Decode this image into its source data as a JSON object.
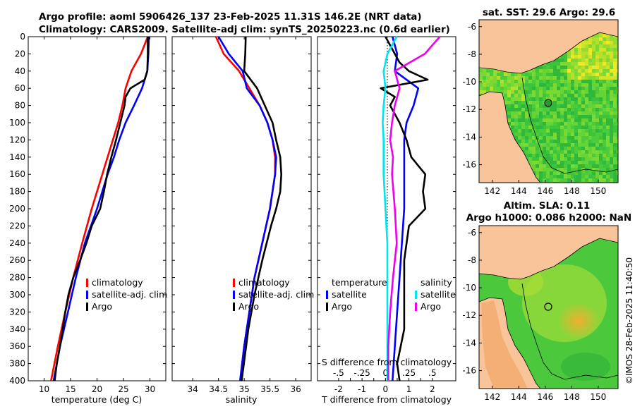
{
  "header": {
    "title_line1": "Argo profile: aoml 5906426_137 23-Feb-2025 11.31S 146.2E (NRT data)",
    "title_line2": "Climatology: CARS2009. Satellite-adj clim: synTS_20250223.nc (0.6d earlier)"
  },
  "side_text": "©IMOS 28-Feb-2025 11:40:50",
  "colors": {
    "climatology": "#ff0000",
    "satellite": "#0000ff",
    "argo": "#000000",
    "s_satellite": "#00e5ee",
    "s_argo": "#ee00ee",
    "sea_green": "#3cc43c",
    "land": "#f9c49a",
    "lowland": "#f0a868"
  },
  "chart_data": [
    {
      "type": "line",
      "name": "temperature-profile",
      "xlabel": "temperature (deg C)",
      "ylabel": "depth",
      "xlim": [
        7,
        33
      ],
      "ylim": [
        400,
        0
      ],
      "xticks": [
        10,
        15,
        20,
        25,
        30
      ],
      "yticks": [
        0,
        20,
        40,
        60,
        80,
        100,
        120,
        140,
        160,
        180,
        200,
        220,
        240,
        260,
        280,
        300,
        320,
        340,
        360,
        380,
        400
      ],
      "legend": [
        "climatology",
        "satellite-adj. clim",
        "Argo"
      ],
      "series": [
        {
          "name": "climatology",
          "color": "#ff0000",
          "depth": [
            0,
            20,
            40,
            60,
            80,
            100,
            120,
            140,
            160,
            200,
            240,
            280,
            320,
            360,
            400
          ],
          "values": [
            29.6,
            28.3,
            26.5,
            25.4,
            24.8,
            24.0,
            23.0,
            22.0,
            21.0,
            19.0,
            17.2,
            15.5,
            14.0,
            12.6,
            11.3
          ]
        },
        {
          "name": "satellite-adj. clim",
          "color": "#0000ff",
          "depth": [
            0,
            20,
            40,
            60,
            80,
            100,
            120,
            140,
            160,
            200,
            240,
            280,
            320,
            360,
            400
          ],
          "values": [
            29.8,
            29.7,
            29.5,
            28.5,
            27.0,
            25.4,
            24.2,
            23.2,
            22.0,
            20.0,
            17.7,
            16.0,
            14.5,
            13.0,
            11.8
          ]
        },
        {
          "name": "Argo",
          "color": "#000000",
          "depth": [
            0,
            20,
            40,
            50,
            60,
            70,
            80,
            100,
            120,
            140,
            160,
            180,
            200,
            220,
            240,
            260,
            280,
            300,
            320,
            340,
            360,
            380,
            400
          ],
          "values": [
            29.6,
            29.6,
            29.5,
            29.0,
            26.3,
            25.4,
            25.2,
            24.4,
            23.6,
            22.7,
            21.9,
            21.3,
            20.6,
            19.0,
            18.0,
            16.8,
            15.5,
            14.6,
            14.0,
            13.5,
            13.0,
            12.4,
            12.0
          ]
        }
      ]
    },
    {
      "type": "line",
      "name": "salinity-profile",
      "xlabel": "salinity",
      "ylabel": "depth",
      "xlim": [
        33.6,
        36.3
      ],
      "ylim": [
        400,
        0
      ],
      "xticks": [
        34,
        34.5,
        35,
        35.5,
        36
      ],
      "legend": [
        "climatology",
        "satellite-adj. clim",
        "Argo"
      ],
      "series": [
        {
          "name": "climatology",
          "color": "#ff0000",
          "depth": [
            0,
            20,
            40,
            60,
            80,
            100,
            120,
            140,
            160,
            200,
            240,
            280,
            320,
            360,
            400
          ],
          "values": [
            34.45,
            34.6,
            34.9,
            35.1,
            35.3,
            35.45,
            35.55,
            35.6,
            35.6,
            35.5,
            35.35,
            35.2,
            35.1,
            35.0,
            34.92
          ]
        },
        {
          "name": "satellite-adj. clim",
          "color": "#0000ff",
          "depth": [
            0,
            20,
            40,
            60,
            80,
            100,
            120,
            140,
            160,
            200,
            240,
            280,
            320,
            360,
            400
          ],
          "values": [
            34.5,
            34.7,
            34.97,
            35.05,
            35.3,
            35.45,
            35.55,
            35.62,
            35.6,
            35.5,
            35.35,
            35.2,
            35.1,
            35.0,
            34.92
          ]
        },
        {
          "name": "Argo",
          "color": "#000000",
          "depth": [
            0,
            20,
            40,
            60,
            80,
            100,
            120,
            140,
            160,
            180,
            200,
            220,
            260,
            300,
            340,
            400
          ],
          "values": [
            35.03,
            35.02,
            35.0,
            35.25,
            35.4,
            35.55,
            35.62,
            35.7,
            35.72,
            35.7,
            35.62,
            35.52,
            35.35,
            35.2,
            35.08,
            34.95
          ]
        }
      ]
    },
    {
      "type": "line",
      "name": "difference-profile",
      "xlabel": "T difference from climatology",
      "x2label": "S difference from climatology",
      "xlim": [
        -2.9,
        3.0
      ],
      "x2lim": [
        -0.725,
        0.75
      ],
      "ylim": [
        400,
        0
      ],
      "xticks": [
        -2,
        -1.5,
        -1,
        -0.5,
        0,
        0.5,
        1,
        1.5,
        2
      ],
      "x2ticks": [
        -0.5,
        -0.25,
        0,
        0.25,
        0.5
      ],
      "legend_temperature": {
        "title": "temperature",
        "items": [
          "satellite",
          "Argo"
        ]
      },
      "legend_salinity": {
        "title": "salinity",
        "items": [
          "satellite",
          "Argo"
        ]
      },
      "series": [
        {
          "name": "T satellite",
          "color": "#0000ff",
          "depth": [
            0,
            20,
            40,
            60,
            80,
            100,
            120,
            140,
            160,
            200,
            240,
            280,
            320,
            360,
            400
          ],
          "values": [
            0.3,
            0.5,
            0.4,
            1.4,
            1.2,
            0.9,
            0.8,
            0.8,
            0.8,
            0.8,
            0.7,
            0.6,
            0.5,
            0.4,
            0.3
          ]
        },
        {
          "name": "T Argo",
          "color": "#000000",
          "depth": [
            0,
            30,
            40,
            50,
            60,
            70,
            80,
            100,
            120,
            140,
            160,
            180,
            200,
            220,
            260,
            300,
            340,
            380,
            400
          ],
          "values": [
            0.0,
            0.6,
            1.0,
            1.8,
            -0.2,
            0.4,
            0.2,
            0.6,
            0.9,
            1.1,
            1.7,
            1.6,
            1.7,
            1.0,
            0.8,
            0.8,
            0.8,
            0.5,
            0.6
          ]
        },
        {
          "name": "S satellite",
          "color": "#00e5ee",
          "depth": [
            0,
            20,
            40,
            60,
            80,
            100,
            120,
            140,
            160,
            200,
            240,
            280,
            320,
            360,
            400
          ],
          "values": [
            0.12,
            0.02,
            -0.02,
            0.0,
            -0.02,
            -0.03,
            -0.02,
            -0.02,
            -0.02,
            0.0,
            0.02,
            0.02,
            0.02,
            0.02,
            0.02
          ]
        },
        {
          "name": "S Argo",
          "color": "#ee00ee",
          "depth": [
            0,
            20,
            40,
            60,
            80,
            100,
            120,
            140,
            160,
            200,
            240,
            280,
            320,
            360,
            400
          ],
          "values": [
            0.58,
            0.42,
            0.1,
            0.15,
            0.1,
            0.07,
            0.05,
            0.08,
            0.07,
            0.1,
            0.12,
            0.08,
            0.05,
            0.03,
            0.03
          ]
        }
      ]
    },
    {
      "type": "map",
      "name": "sst-map",
      "title": "sat. SST: 29.6 Argo: 29.6",
      "xticks": [
        142,
        144,
        146,
        148,
        150
      ],
      "yticks": [
        -6,
        -8,
        -10,
        -12,
        -14,
        -16
      ],
      "lon_range": [
        141,
        151.5
      ],
      "lat_range": [
        -17.3,
        -5.5
      ],
      "marker": {
        "lon": 146.2,
        "lat": -11.31
      }
    },
    {
      "type": "map",
      "name": "sla-map",
      "title_line1": "Altim. SLA: 0.11",
      "title_line2": "Argo h1000: 0.086 h2000: NaN",
      "xticks": [
        142,
        144,
        146,
        148,
        150
      ],
      "yticks": [
        -6,
        -8,
        -10,
        -12,
        -14,
        -16
      ],
      "lon_range": [
        141,
        151.5
      ],
      "lat_range": [
        -17.3,
        -5.5
      ],
      "marker": {
        "lon": 146.2,
        "lat": -11.31
      }
    }
  ]
}
